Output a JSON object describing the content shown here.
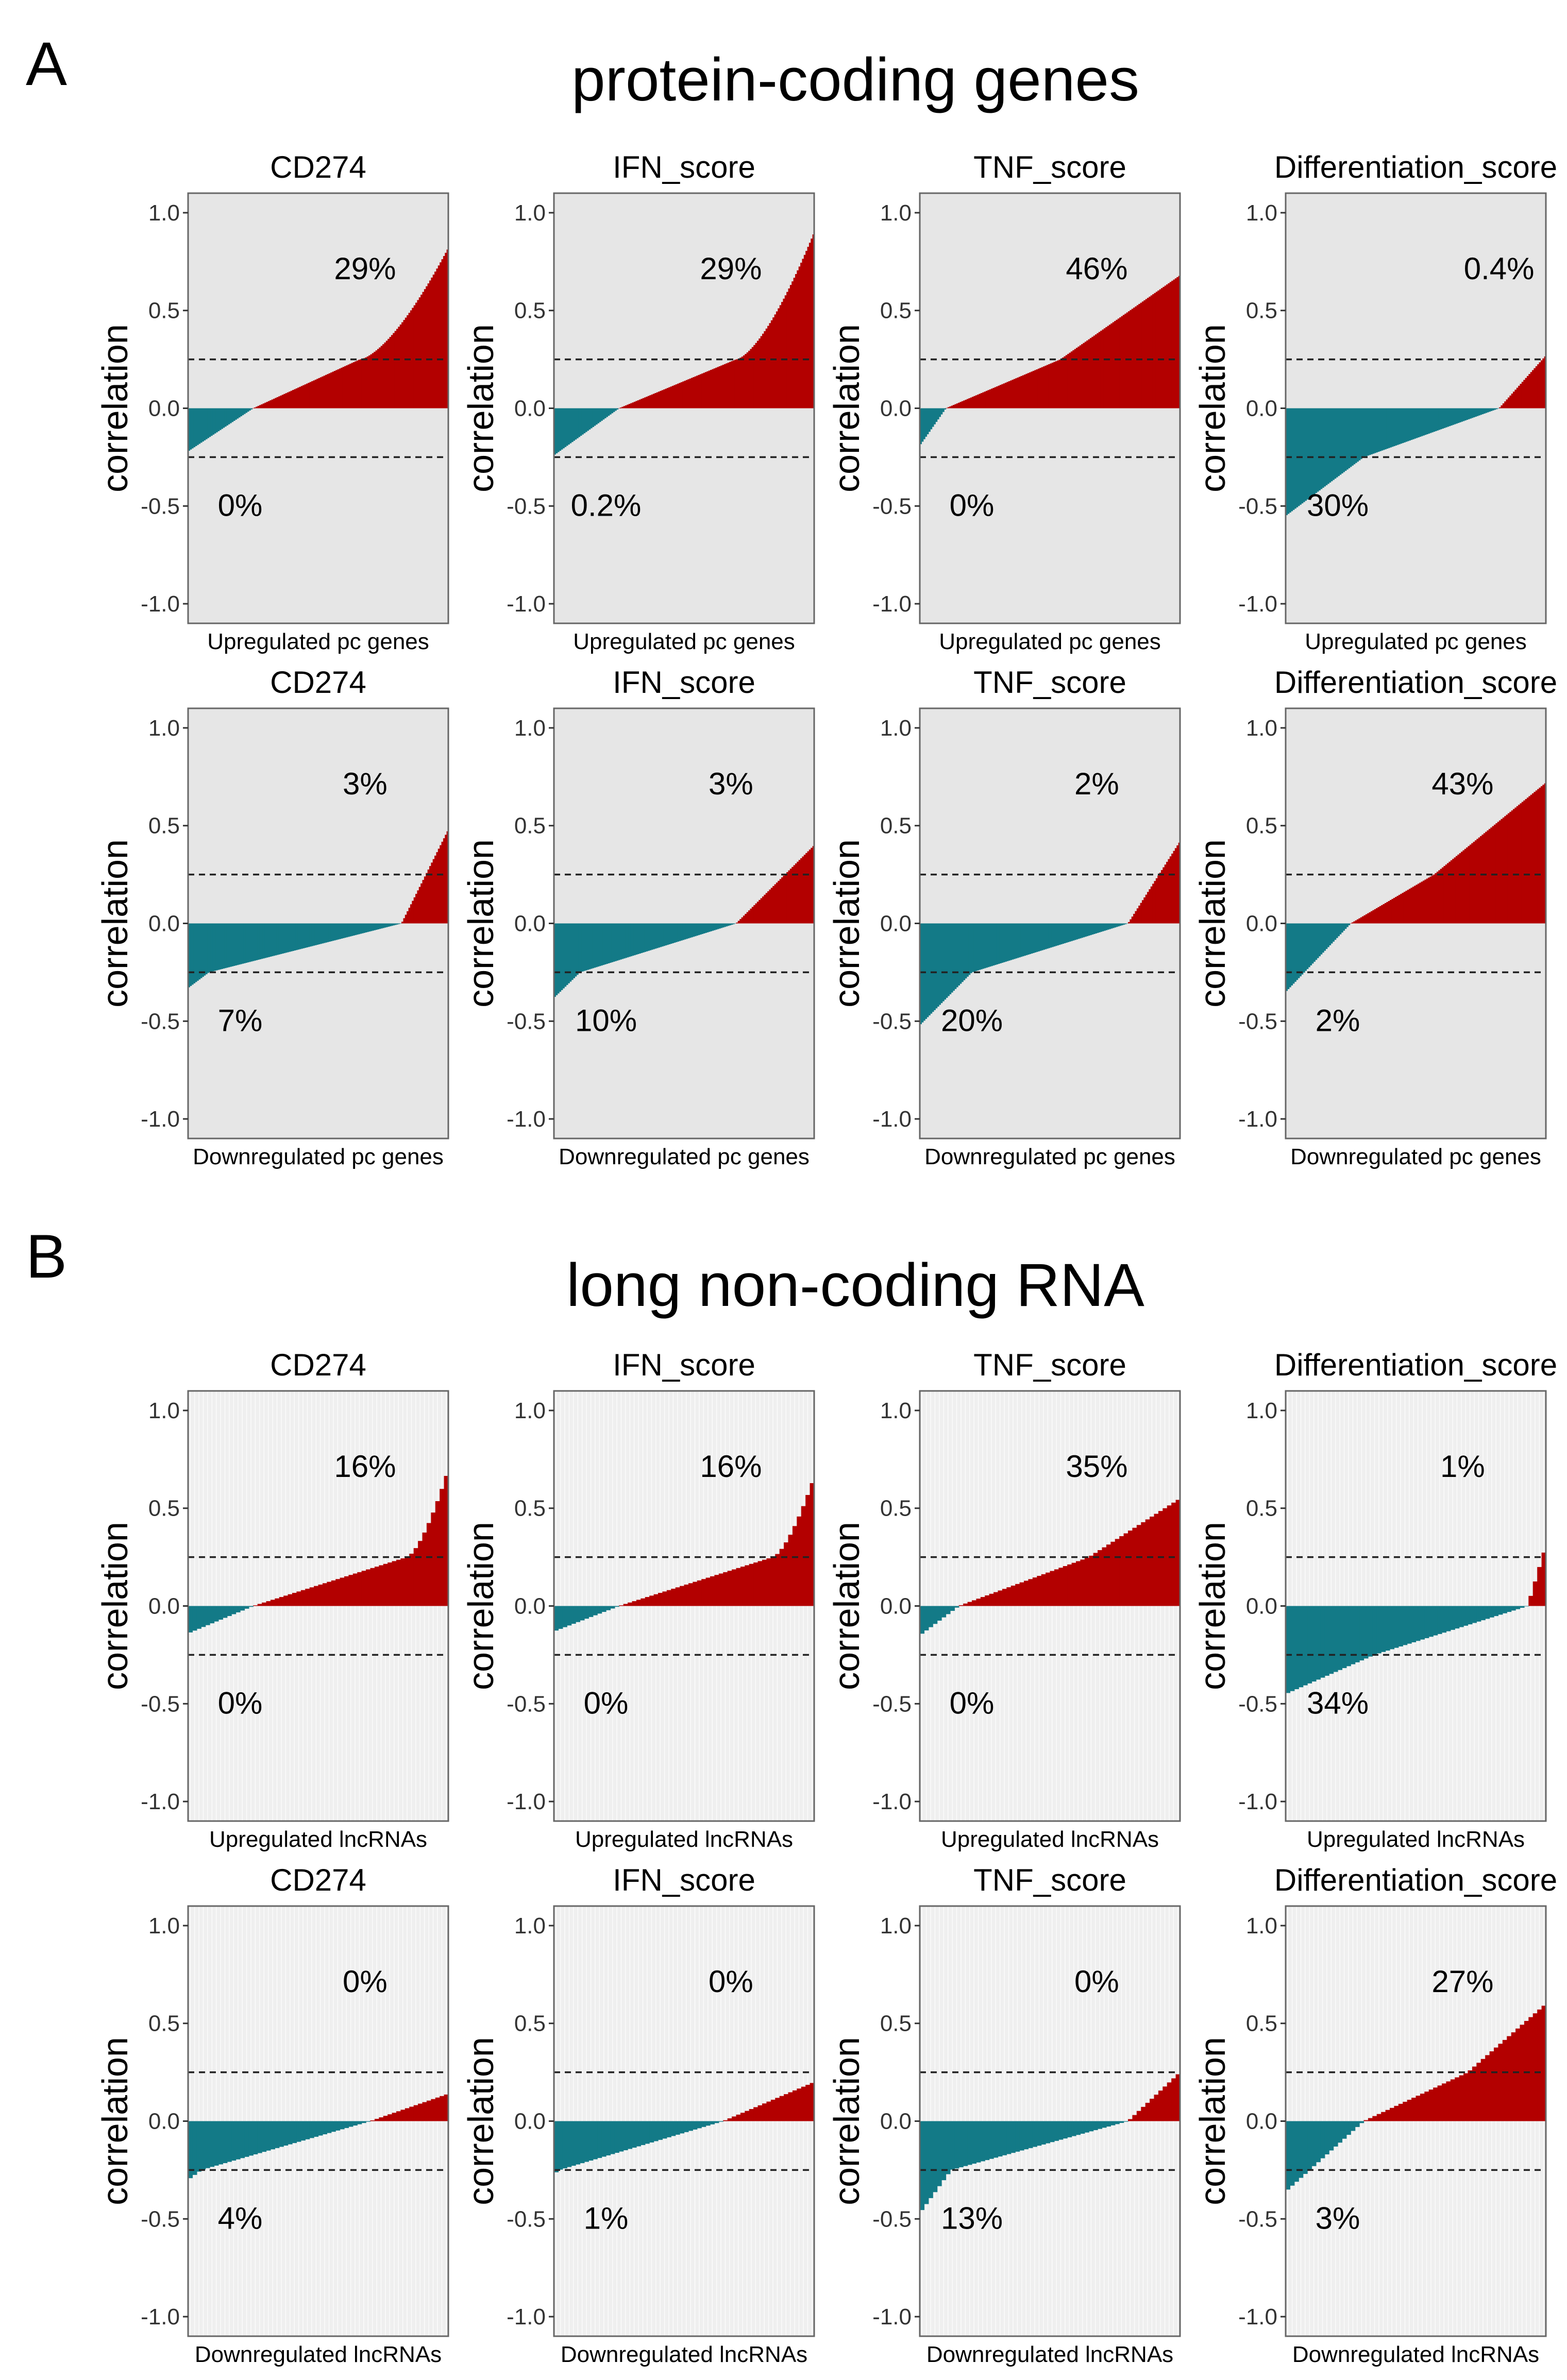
{
  "figure": {
    "panel_a_letter": "A",
    "panel_b_letter": "B",
    "panel_a_title": "protein-coding genes",
    "panel_b_title": "long non-coding RNA"
  },
  "colors": {
    "positive": "#B30000",
    "negative": "#137A87",
    "panel_bg_pc": "#E6E6E6",
    "panel_bg_lnc": "#EFEFEF",
    "border": "#666666",
    "dashed": "#222222"
  },
  "chart_data": [
    {
      "type": "bar",
      "section": "A",
      "title": "CD274",
      "xlabel": "Upregulated pc genes",
      "ylabel": "correlation",
      "ylim": [
        -1.1,
        1.1
      ],
      "yticks": [
        "1.0",
        "0.5",
        "0.0",
        "-0.5",
        "-1.0"
      ],
      "threshold": 0.25,
      "pct_high": "29%",
      "pct_low": "0%",
      "n_bars": 150,
      "curve": {
        "min": -0.22,
        "max": 0.82,
        "zero_at": 0.25,
        "thr_at": 0.66,
        "shape": "convex"
      }
    },
    {
      "type": "bar",
      "section": "A",
      "title": "IFN_score",
      "xlabel": "Upregulated pc genes",
      "ylabel": "correlation",
      "ylim": [
        -1.1,
        1.1
      ],
      "yticks": [
        "1.0",
        "0.5",
        "0.0",
        "-0.5",
        "-1.0"
      ],
      "threshold": 0.25,
      "pct_high": "29%",
      "pct_low": "0.2%",
      "n_bars": 150,
      "curve": {
        "min": -0.24,
        "max": 0.9,
        "zero_at": 0.25,
        "thr_at": 0.7,
        "shape": "convex"
      }
    },
    {
      "type": "bar",
      "section": "A",
      "title": "TNF_score",
      "xlabel": "Upregulated pc genes",
      "ylabel": "correlation",
      "ylim": [
        -1.1,
        1.1
      ],
      "yticks": [
        "1.0",
        "0.5",
        "0.0",
        "-0.5",
        "-1.0"
      ],
      "threshold": 0.25,
      "pct_high": "46%",
      "pct_low": "0%",
      "n_bars": 150,
      "curve": {
        "min": -0.19,
        "max": 0.68,
        "zero_at": 0.1,
        "thr_at": 0.54,
        "shape": "linear"
      }
    },
    {
      "type": "bar",
      "section": "A",
      "title": "Differentiation_score",
      "xlabel": "Upregulated pc genes",
      "ylabel": "correlation",
      "ylim": [
        -1.1,
        1.1
      ],
      "yticks": [
        "1.0",
        "0.5",
        "0.0",
        "-0.5",
        "-1.0"
      ],
      "threshold": 0.25,
      "pct_high": "0.4%",
      "pct_low": "30%",
      "n_bars": 150,
      "curve": {
        "min": -0.55,
        "max": 0.27,
        "zero_at": 0.82,
        "thr_at": 0.3,
        "shape": "linear"
      }
    },
    {
      "type": "bar",
      "section": "A",
      "title": "CD274",
      "xlabel": "Downregulated pc genes",
      "ylabel": "correlation",
      "ylim": [
        -1.1,
        1.1
      ],
      "yticks": [
        "1.0",
        "0.5",
        "0.0",
        "-0.5",
        "-1.0"
      ],
      "threshold": 0.25,
      "pct_high": "3%",
      "pct_low": "7%",
      "n_bars": 150,
      "curve": {
        "min": -0.33,
        "max": 0.48,
        "zero_at": 0.82,
        "thr_at": 0.08,
        "shape": "linear"
      }
    },
    {
      "type": "bar",
      "section": "A",
      "title": "IFN_score",
      "xlabel": "Downregulated pc genes",
      "ylabel": "correlation",
      "ylim": [
        -1.1,
        1.1
      ],
      "yticks": [
        "1.0",
        "0.5",
        "0.0",
        "-0.5",
        "-1.0"
      ],
      "threshold": 0.25,
      "pct_high": "3%",
      "pct_low": "10%",
      "n_bars": 150,
      "curve": {
        "min": -0.38,
        "max": 0.4,
        "zero_at": 0.7,
        "thr_at": 0.1,
        "shape": "linear"
      }
    },
    {
      "type": "bar",
      "section": "A",
      "title": "TNF_score",
      "xlabel": "Downregulated pc genes",
      "ylabel": "correlation",
      "ylim": [
        -1.1,
        1.1
      ],
      "yticks": [
        "1.0",
        "0.5",
        "0.0",
        "-0.5",
        "-1.0"
      ],
      "threshold": 0.25,
      "pct_high": "2%",
      "pct_low": "20%",
      "n_bars": 150,
      "curve": {
        "min": -0.52,
        "max": 0.42,
        "zero_at": 0.8,
        "thr_at": 0.2,
        "shape": "linear"
      }
    },
    {
      "type": "bar",
      "section": "A",
      "title": "Differentiation_score",
      "xlabel": "Downregulated pc genes",
      "ylabel": "correlation",
      "ylim": [
        -1.1,
        1.1
      ],
      "yticks": [
        "1.0",
        "0.5",
        "0.0",
        "-0.5",
        "-1.0"
      ],
      "threshold": 0.25,
      "pct_high": "43%",
      "pct_low": "2%",
      "n_bars": 150,
      "curve": {
        "min": -0.35,
        "max": 0.72,
        "zero_at": 0.25,
        "thr_at": 0.57,
        "shape": "linear"
      }
    },
    {
      "type": "bar",
      "section": "B",
      "title": "CD274",
      "xlabel": "Upregulated lncRNAs",
      "ylabel": "correlation",
      "ylim": [
        -1.1,
        1.1
      ],
      "yticks": [
        "1.0",
        "0.5",
        "0.0",
        "-0.5",
        "-1.0"
      ],
      "threshold": 0.25,
      "pct_high": "16%",
      "pct_low": "0%",
      "n_bars": 60,
      "curve": {
        "min": -0.14,
        "max": 0.7,
        "zero_at": 0.25,
        "thr_at": 0.84,
        "shape": "convex"
      }
    },
    {
      "type": "bar",
      "section": "B",
      "title": "IFN_score",
      "xlabel": "Upregulated lncRNAs",
      "ylabel": "correlation",
      "ylim": [
        -1.1,
        1.1
      ],
      "yticks": [
        "1.0",
        "0.5",
        "0.0",
        "-0.5",
        "-1.0"
      ],
      "threshold": 0.25,
      "pct_high": "16%",
      "pct_low": "0%",
      "n_bars": 60,
      "curve": {
        "min": -0.13,
        "max": 0.66,
        "zero_at": 0.25,
        "thr_at": 0.84,
        "shape": "convex"
      }
    },
    {
      "type": "bar",
      "section": "B",
      "title": "TNF_score",
      "xlabel": "Upregulated lncRNAs",
      "ylabel": "correlation",
      "ylim": [
        -1.1,
        1.1
      ],
      "yticks": [
        "1.0",
        "0.5",
        "0.0",
        "-0.5",
        "-1.0"
      ],
      "threshold": 0.25,
      "pct_high": "35%",
      "pct_low": "0%",
      "n_bars": 60,
      "curve": {
        "min": -0.15,
        "max": 0.55,
        "zero_at": 0.15,
        "thr_at": 0.65,
        "shape": "linear"
      }
    },
    {
      "type": "bar",
      "section": "B",
      "title": "Differentiation_score",
      "xlabel": "Upregulated lncRNAs",
      "ylabel": "correlation",
      "ylim": [
        -1.1,
        1.1
      ],
      "yticks": [
        "1.0",
        "0.5",
        "0.0",
        "-0.5",
        "-1.0"
      ],
      "threshold": 0.25,
      "pct_high": "1%",
      "pct_low": "34%",
      "n_bars": 60,
      "curve": {
        "min": -0.45,
        "max": 0.31,
        "zero_at": 0.93,
        "thr_at": 0.34,
        "shape": "linear"
      }
    },
    {
      "type": "bar",
      "section": "B",
      "title": "CD274",
      "xlabel": "Downregulated lncRNAs",
      "ylabel": "correlation",
      "ylim": [
        -1.1,
        1.1
      ],
      "yticks": [
        "1.0",
        "0.5",
        "0.0",
        "-0.5",
        "-1.0"
      ],
      "threshold": 0.25,
      "pct_high": "0%",
      "pct_low": "4%",
      "n_bars": 60,
      "curve": {
        "min": -0.3,
        "max": 0.14,
        "zero_at": 0.7,
        "thr_at": 0.05,
        "shape": "linear"
      }
    },
    {
      "type": "bar",
      "section": "B",
      "title": "IFN_score",
      "xlabel": "Downregulated lncRNAs",
      "ylabel": "correlation",
      "ylim": [
        -1.1,
        1.1
      ],
      "yticks": [
        "1.0",
        "0.5",
        "0.0",
        "-0.5",
        "-1.0"
      ],
      "threshold": 0.25,
      "pct_high": "0%",
      "pct_low": "1%",
      "n_bars": 60,
      "curve": {
        "min": -0.27,
        "max": 0.2,
        "zero_at": 0.65,
        "thr_at": 0.02,
        "shape": "linear"
      }
    },
    {
      "type": "bar",
      "section": "B",
      "title": "TNF_score",
      "xlabel": "Downregulated lncRNAs",
      "ylabel": "correlation",
      "ylim": [
        -1.1,
        1.1
      ],
      "yticks": [
        "1.0",
        "0.5",
        "0.0",
        "-0.5",
        "-1.0"
      ],
      "threshold": 0.25,
      "pct_high": "0%",
      "pct_low": "13%",
      "n_bars": 60,
      "curve": {
        "min": -0.47,
        "max": 0.25,
        "zero_at": 0.8,
        "thr_at": 0.12,
        "shape": "linear"
      }
    },
    {
      "type": "bar",
      "section": "B",
      "title": "Differentiation_score",
      "xlabel": "Downregulated lncRNAs",
      "ylabel": "correlation",
      "ylim": [
        -1.1,
        1.1
      ],
      "yticks": [
        "1.0",
        "0.5",
        "0.0",
        "-0.5",
        "-1.0"
      ],
      "threshold": 0.25,
      "pct_high": "27%",
      "pct_low": "3%",
      "n_bars": 60,
      "curve": {
        "min": -0.36,
        "max": 0.6,
        "zero_at": 0.3,
        "thr_at": 0.7,
        "shape": "linear"
      }
    }
  ]
}
